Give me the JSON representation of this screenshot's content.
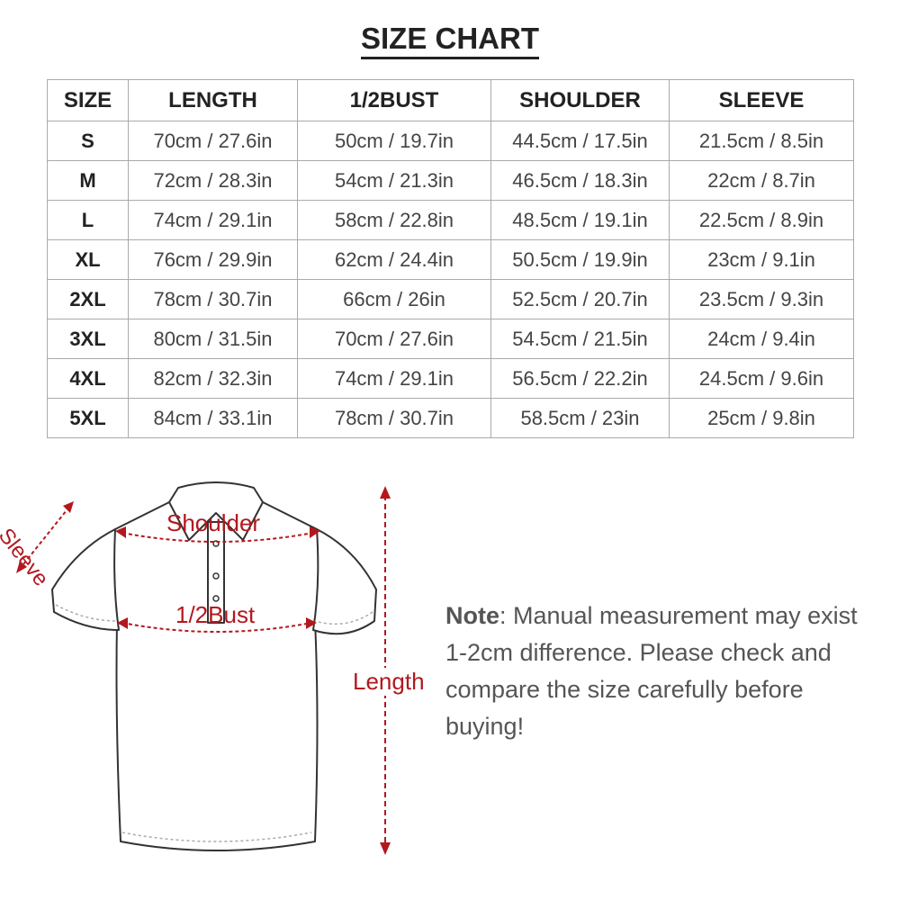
{
  "title": "SIZE CHART",
  "table": {
    "headers": [
      "SIZE",
      "LENGTH",
      "1/2BUST",
      "SHOULDER",
      "SLEEVE"
    ],
    "rows": [
      [
        "S",
        "70cm / 27.6in",
        "50cm / 19.7in",
        "44.5cm / 17.5in",
        "21.5cm / 8.5in"
      ],
      [
        "M",
        "72cm / 28.3in",
        "54cm / 21.3in",
        "46.5cm / 18.3in",
        "22cm / 8.7in"
      ],
      [
        "L",
        "74cm / 29.1in",
        "58cm / 22.8in",
        "48.5cm / 19.1in",
        "22.5cm / 8.9in"
      ],
      [
        "XL",
        "76cm / 29.9in",
        "62cm / 24.4in",
        "50.5cm / 19.9in",
        "23cm / 9.1in"
      ],
      [
        "2XL",
        "78cm / 30.7in",
        "66cm / 26in",
        "52.5cm / 20.7in",
        "23.5cm / 9.3in"
      ],
      [
        "3XL",
        "80cm / 31.5in",
        "70cm / 27.6in",
        "54.5cm / 21.5in",
        "24cm / 9.4in"
      ],
      [
        "4XL",
        "82cm / 32.3in",
        "74cm / 29.1in",
        "56.5cm / 22.2in",
        "24.5cm / 9.6in"
      ],
      [
        "5XL",
        "84cm / 33.1in",
        "78cm / 30.7in",
        "58.5cm / 23in",
        "25cm / 9.8in"
      ]
    ]
  },
  "diagram": {
    "sleeve": "Sleeve",
    "shoulder": "Shoulder",
    "bust": "1/2Bust",
    "length": "Length",
    "accent": "#b3181e"
  },
  "note": {
    "label": "Note",
    "text": ": Manual measurement may exist 1-2cm difference. Please check and compare the size carefully before buying!"
  }
}
